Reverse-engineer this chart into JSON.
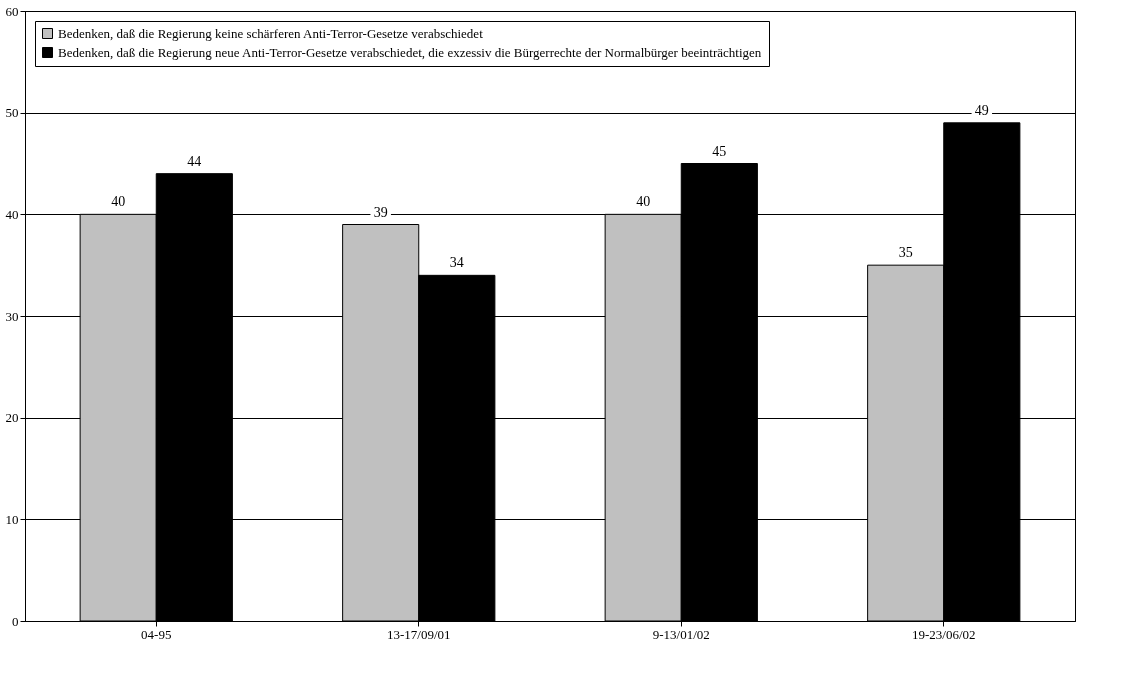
{
  "chart_data": {
    "type": "bar",
    "categories": [
      "04-95",
      "13-17/09/01",
      "9-13/01/02",
      "19-23/06/02"
    ],
    "series": [
      {
        "name": "Bedenken, daß die Regierung keine schärferen Anti-Terror-Gesetze verabschiedet",
        "color": "#c0c0c0",
        "values": [
          40,
          39,
          40,
          35
        ]
      },
      {
        "name": "Bedenken, daß die Regierung neue Anti-Terror-Gesetze verabschiedet, die exzessiv die Bürgerrechte der Normalbürger beeinträchtigen",
        "color": "#000000",
        "values": [
          44,
          34,
          45,
          49
        ]
      }
    ],
    "ylim": [
      0,
      60
    ],
    "yticks": [
      0,
      10,
      20,
      30,
      40,
      50,
      60
    ],
    "grid": "y",
    "legend": "top left",
    "data_labels": true
  }
}
